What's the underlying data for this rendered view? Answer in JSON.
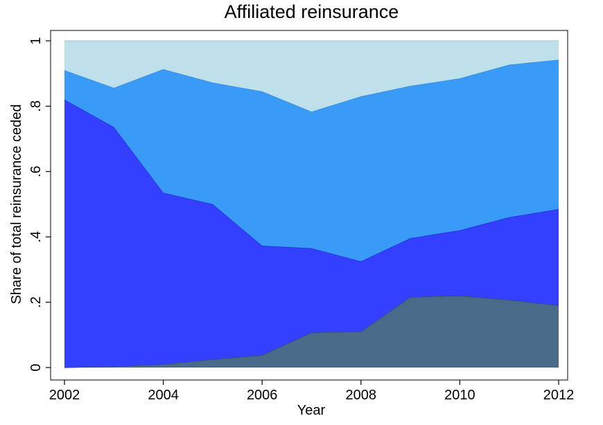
{
  "chart_data": {
    "type": "area",
    "stacked": true,
    "title": "Affiliated reinsurance",
    "xlabel": "Year",
    "ylabel": "Share of total reinsurance ceded",
    "xlim": [
      2002,
      2012
    ],
    "ylim": [
      0,
      1
    ],
    "x_ticks": [
      2002,
      2004,
      2006,
      2008,
      2010,
      2012
    ],
    "x_tick_labels": [
      "2002",
      "2004",
      "2006",
      "2008",
      "2010",
      "2012"
    ],
    "y_ticks": [
      0,
      0.2,
      0.4,
      0.6,
      0.8,
      1
    ],
    "y_tick_labels": [
      "0",
      ".2",
      ".4",
      ".6",
      ".8",
      "1"
    ],
    "grid": false,
    "legend": "none",
    "x": [
      2002,
      2003,
      2004,
      2005,
      2006,
      2007,
      2008,
      2009,
      2010,
      2011,
      2012
    ],
    "series": [
      {
        "color": "#4a6a8a",
        "values": [
          0.0,
          0.003,
          0.01,
          0.025,
          0.038,
          0.107,
          0.11,
          0.216,
          0.22,
          0.207,
          0.19
        ]
      },
      {
        "color": "#3440ff",
        "values": [
          0.82,
          0.733,
          0.525,
          0.475,
          0.335,
          0.258,
          0.215,
          0.18,
          0.2,
          0.253,
          0.295
        ]
      },
      {
        "color": "#3a9bf7",
        "values": [
          0.09,
          0.12,
          0.378,
          0.372,
          0.472,
          0.418,
          0.505,
          0.466,
          0.465,
          0.467,
          0.457
        ]
      },
      {
        "color": "#bde0ea",
        "values": [
          0.09,
          0.144,
          0.087,
          0.128,
          0.155,
          0.217,
          0.17,
          0.138,
          0.115,
          0.073,
          0.058
        ]
      }
    ]
  }
}
